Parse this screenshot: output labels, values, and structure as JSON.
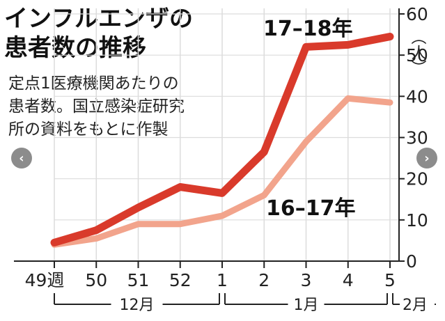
{
  "title": [
    "インフルエンザの",
    "患者数の推移"
  ],
  "note": [
    "定点1医療機関あたりの",
    "患者数。国立感染症研究",
    "所の資料をもとに作製"
  ],
  "chart_data": {
    "type": "line",
    "categories": [
      "49週",
      "50",
      "51",
      "52",
      "1",
      "2",
      "3",
      "4",
      "5"
    ],
    "months": [
      {
        "label": "12月",
        "from": 0,
        "to": 4
      },
      {
        "label": "1月",
        "from": 4,
        "to": 8
      },
      {
        "label": "2月",
        "from": 8,
        "to": 8
      }
    ],
    "ylim": [
      0,
      60
    ],
    "yticks": [
      0,
      10,
      20,
      30,
      40,
      50,
      60
    ],
    "yunit": "（人）",
    "series": [
      {
        "name": "17–18年",
        "color": "#d93a2b",
        "values": [
          4.5,
          7.5,
          13,
          18,
          16.5,
          26.5,
          52,
          52.5,
          54.5
        ]
      },
      {
        "name": "16–17年",
        "color": "#f2a48c",
        "values": [
          4,
          5.5,
          9,
          9,
          11,
          16,
          29,
          39.5,
          38.5
        ]
      }
    ]
  },
  "ui": {
    "prev": "‹",
    "next": "›"
  }
}
